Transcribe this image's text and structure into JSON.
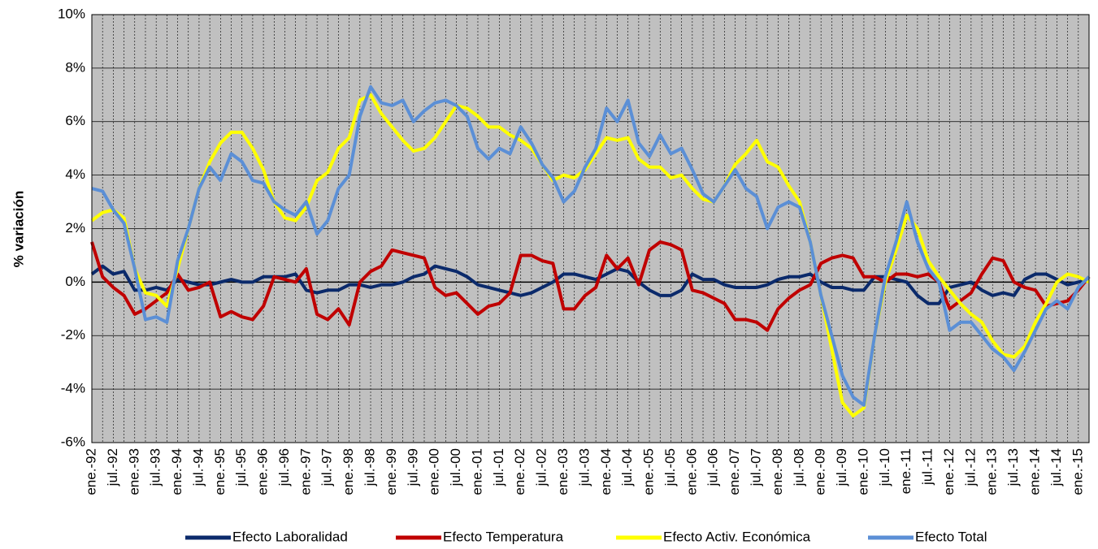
{
  "chart_data": {
    "type": "line",
    "y_label": "% variación",
    "categories": [
      "ene.-92",
      null,
      "jul.-92",
      null,
      "ene.-93",
      null,
      "jul.-93",
      null,
      "ene.-94",
      null,
      "jul.-94",
      null,
      "ene.-95",
      null,
      "jul.-95",
      null,
      "ene.-96",
      null,
      "jul.-96",
      null,
      "ene.-97",
      null,
      "jul.-97",
      null,
      "ene.-98",
      null,
      "jul.-98",
      null,
      "ene.-99",
      null,
      "jul.-99",
      null,
      "ene.-00",
      null,
      "jul.-00",
      null,
      "ene.-01",
      null,
      "jul.-01",
      null,
      "ene.-02",
      null,
      "jul.-02",
      null,
      "ene.-03",
      null,
      "jul.-03",
      null,
      "ene.-04",
      null,
      "jul.-04",
      null,
      "ene.-05",
      null,
      "jul.-05",
      null,
      "ene.-06",
      null,
      "jul.-06",
      null,
      "ene.-07",
      null,
      "jul.-07",
      null,
      "ene.-08",
      null,
      "jul.-08",
      null,
      "ene.-09",
      null,
      "jul.-09",
      null,
      "ene.-10",
      null,
      "jul.-10",
      null,
      "ene.-11",
      null,
      "jul.-11",
      null,
      "ene.-12",
      null,
      "jul.-12",
      null,
      "ene.-13",
      null,
      "jul.-13",
      null,
      "ene.-14",
      null,
      "jul.-14",
      null,
      "ene.-15",
      null
    ],
    "series": [
      {
        "name": "Efecto Laboralidad",
        "color": "#0b2a6b",
        "values": [
          0.3,
          0.6,
          0.3,
          0.4,
          -0.3,
          -0.3,
          -0.2,
          -0.3,
          0.1,
          0.0,
          -0.1,
          -0.1,
          0.0,
          0.1,
          0.0,
          0.0,
          0.2,
          0.2,
          0.2,
          0.3,
          -0.3,
          -0.4,
          -0.3,
          -0.3,
          -0.1,
          -0.1,
          -0.2,
          -0.1,
          -0.1,
          0.0,
          0.2,
          0.3,
          0.6,
          0.5,
          0.4,
          0.2,
          -0.1,
          -0.2,
          -0.3,
          -0.4,
          -0.5,
          -0.4,
          -0.2,
          0.0,
          0.3,
          0.3,
          0.2,
          0.1,
          0.3,
          0.5,
          0.4,
          0.0,
          -0.3,
          -0.5,
          -0.5,
          -0.3,
          0.3,
          0.1,
          0.1,
          -0.1,
          -0.2,
          -0.2,
          -0.2,
          -0.1,
          0.1,
          0.2,
          0.2,
          0.3,
          0.0,
          -0.2,
          -0.2,
          -0.3,
          -0.3,
          0.2,
          0.2,
          0.1,
          0.0,
          -0.5,
          -0.8,
          -0.8,
          -0.2,
          -0.1,
          0.0,
          -0.3,
          -0.5,
          -0.4,
          -0.5,
          0.1,
          0.3,
          0.3,
          0.1,
          -0.1,
          0.0,
          0.1
        ]
      },
      {
        "name": "Efecto Temperatura",
        "color": "#c00000",
        "values": [
          1.5,
          0.2,
          -0.2,
          -0.5,
          -1.2,
          -1.0,
          -0.7,
          -0.4,
          0.3,
          -0.3,
          -0.2,
          0.0,
          -1.3,
          -1.1,
          -1.3,
          -1.4,
          -0.9,
          0.2,
          0.1,
          0.0,
          0.5,
          -1.2,
          -1.4,
          -1.0,
          -1.6,
          0.0,
          0.4,
          0.6,
          1.2,
          1.1,
          1.0,
          0.9,
          -0.2,
          -0.5,
          -0.4,
          -0.8,
          -1.2,
          -0.9,
          -0.8,
          -0.4,
          1.0,
          1.0,
          0.8,
          0.7,
          -1.0,
          -1.0,
          -0.5,
          -0.2,
          1.0,
          0.5,
          0.9,
          -0.1,
          1.2,
          1.5,
          1.4,
          1.2,
          -0.3,
          -0.4,
          -0.6,
          -0.8,
          -1.4,
          -1.4,
          -1.5,
          -1.8,
          -1.0,
          -0.6,
          -0.3,
          -0.1,
          0.7,
          0.9,
          1.0,
          0.9,
          0.2,
          0.2,
          0.0,
          0.3,
          0.3,
          0.2,
          0.3,
          0.0,
          -1.0,
          -0.7,
          -0.4,
          0.3,
          0.9,
          0.8,
          0.0,
          -0.2,
          -0.3,
          -0.9,
          -0.8,
          -0.7,
          -0.3,
          0.2
        ]
      },
      {
        "name": "Efecto Activ. Económica",
        "color": "#ffff00",
        "values": [
          2.3,
          2.6,
          2.7,
          2.4,
          0.5,
          -0.4,
          -0.5,
          -0.9,
          0.5,
          2.0,
          3.5,
          4.5,
          5.2,
          5.6,
          5.6,
          5.0,
          4.2,
          3.0,
          2.4,
          2.3,
          2.8,
          3.8,
          4.1,
          5.0,
          5.4,
          6.8,
          7.0,
          6.3,
          5.8,
          5.3,
          4.9,
          5.0,
          5.4,
          6.0,
          6.6,
          6.5,
          6.2,
          5.8,
          5.8,
          5.5,
          5.3,
          5.0,
          4.4,
          3.8,
          4.0,
          3.9,
          4.2,
          4.8,
          5.4,
          5.3,
          5.4,
          4.6,
          4.3,
          4.3,
          3.9,
          4.0,
          3.5,
          3.1,
          3.0,
          3.6,
          4.4,
          4.8,
          5.3,
          4.5,
          4.3,
          3.6,
          3.0,
          1.5,
          -0.5,
          -2.5,
          -4.5,
          -5.0,
          -4.7,
          -2.0,
          0.0,
          1.2,
          2.5,
          2.0,
          0.8,
          0.2,
          -0.3,
          -0.8,
          -1.2,
          -1.5,
          -2.2,
          -2.7,
          -2.8,
          -2.4,
          -1.5,
          -0.8,
          0.0,
          0.3,
          0.2,
          0.0
        ]
      },
      {
        "name": "Efecto Total",
        "color": "#5b8fd6",
        "values": [
          3.5,
          3.4,
          2.7,
          2.2,
          0.5,
          -1.4,
          -1.3,
          -1.5,
          0.8,
          2.0,
          3.5,
          4.3,
          3.8,
          4.8,
          4.5,
          3.8,
          3.7,
          3.0,
          2.7,
          2.5,
          3.0,
          1.8,
          2.3,
          3.5,
          4.0,
          6.2,
          7.3,
          6.7,
          6.6,
          6.8,
          6.0,
          6.4,
          6.7,
          6.8,
          6.6,
          6.2,
          5.0,
          4.6,
          5.0,
          4.8,
          5.8,
          5.2,
          4.4,
          3.9,
          3.0,
          3.4,
          4.3,
          5.0,
          6.5,
          6.0,
          6.8,
          5.2,
          4.7,
          5.5,
          4.8,
          5.0,
          4.2,
          3.3,
          3.0,
          3.6,
          4.2,
          3.5,
          3.2,
          2.0,
          2.8,
          3.0,
          2.8,
          1.5,
          -0.5,
          -2.0,
          -3.5,
          -4.3,
          -4.6,
          -2.0,
          0.2,
          1.5,
          3.0,
          1.5,
          0.5,
          0.0,
          -1.8,
          -1.5,
          -1.5,
          -2.0,
          -2.5,
          -2.8,
          -3.3,
          -2.6,
          -1.8,
          -1.0,
          -0.7,
          -1.0,
          -0.2,
          0.2
        ]
      }
    ],
    "ylim": [
      -6,
      10
    ],
    "yticks": [
      {
        "value": -6,
        "label": "-6%"
      },
      {
        "value": -4,
        "label": "-4%"
      },
      {
        "value": -2,
        "label": "-2%"
      },
      {
        "value": 0,
        "label": "0%"
      },
      {
        "value": 2,
        "label": "2%"
      },
      {
        "value": 4,
        "label": "4%"
      },
      {
        "value": 6,
        "label": "6%"
      },
      {
        "value": 8,
        "label": "8%"
      },
      {
        "value": 10,
        "label": "10%"
      }
    ],
    "grid": true,
    "legend": "bottom"
  }
}
